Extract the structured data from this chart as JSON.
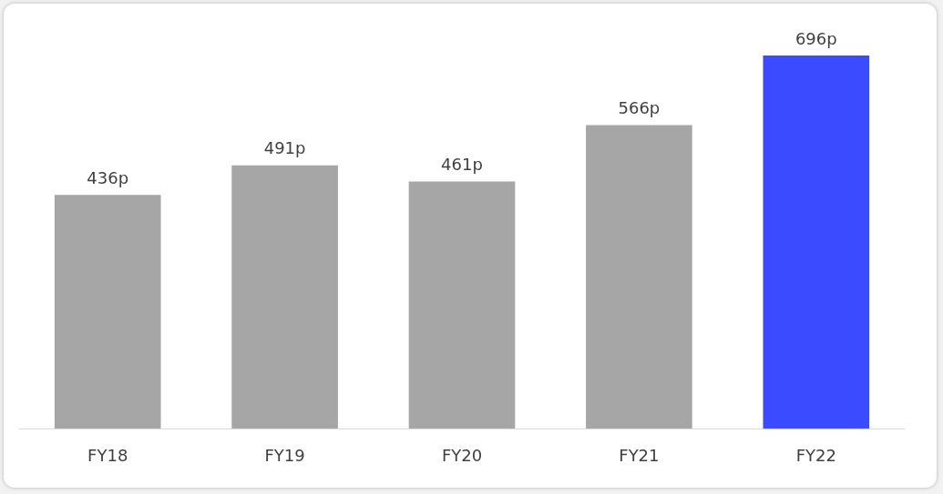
{
  "chart_data": {
    "type": "bar",
    "categories": [
      "FY18",
      "FY19",
      "FY20",
      "FY21",
      "FY22"
    ],
    "values": [
      436,
      491,
      461,
      566,
      696
    ],
    "colors": [
      "#a6a6a6",
      "#a6a6a6",
      "#a6a6a6",
      "#a6a6a6",
      "#3b4bff"
    ],
    "value_labels": [
      "436p",
      "491p",
      "461p",
      "566p",
      "696p"
    ]
  }
}
